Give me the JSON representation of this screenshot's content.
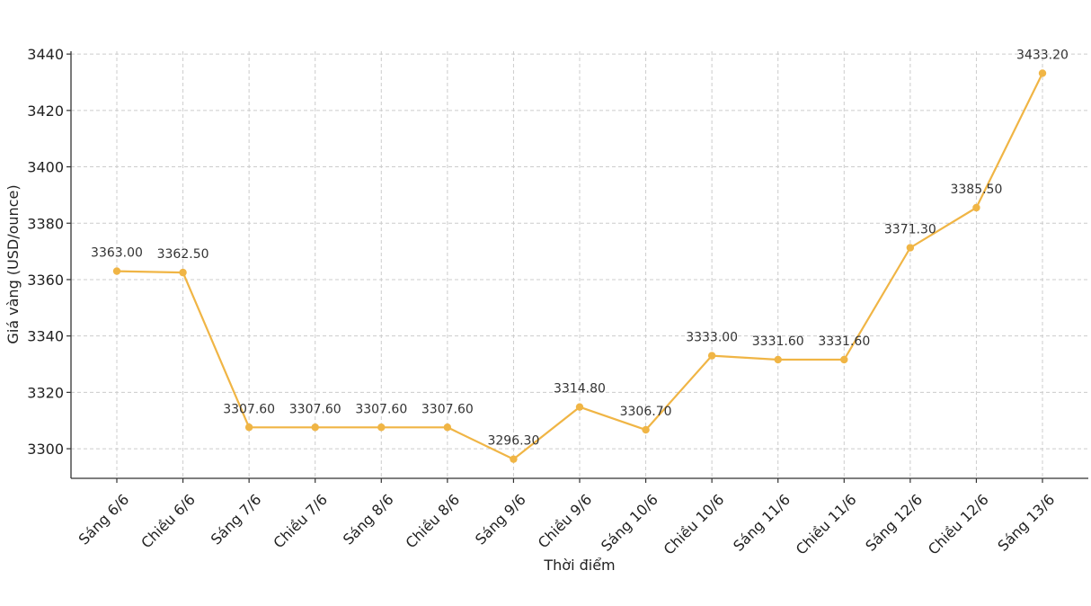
{
  "chart_data": {
    "type": "line",
    "title": "",
    "xlabel": "Thời điểm",
    "ylabel": "Giá vàng (USD/ounce)",
    "categories": [
      "Sáng 6/6",
      "Chiều 6/6",
      "Sáng 7/6",
      "Chiều 7/6",
      "Sáng 8/6",
      "Chiều 8/6",
      "Sáng 9/6",
      "Chiều 9/6",
      "Sáng 10/6",
      "Chiều 10/6",
      "Sáng 11/6",
      "Chiều 11/6",
      "Sáng 12/6",
      "Chiều 12/6",
      "Sáng 13/6"
    ],
    "values": [
      3363.0,
      3362.5,
      3307.6,
      3307.6,
      3307.6,
      3307.6,
      3296.3,
      3314.8,
      3306.7,
      3333.0,
      3331.6,
      3331.6,
      3371.3,
      3385.5,
      3433.2
    ],
    "value_labels": [
      "3363.00",
      "3362.50",
      "3307.60",
      "3307.60",
      "3307.60",
      "3307.60",
      "3296.30",
      "3314.80",
      "3306.70",
      "3333.00",
      "3331.60",
      "3331.60",
      "3371.30",
      "3385.50",
      "3433.20"
    ],
    "ylim": [
      3289.5,
      3441.0
    ],
    "yticks": [
      3300,
      3320,
      3340,
      3360,
      3380,
      3400,
      3420,
      3440
    ],
    "ytick_labels": [
      "3300",
      "3320",
      "3340",
      "3360",
      "3380",
      "3400",
      "3420",
      "3440"
    ],
    "grid": true,
    "line_color": "#f0b545",
    "marker": "circle"
  }
}
